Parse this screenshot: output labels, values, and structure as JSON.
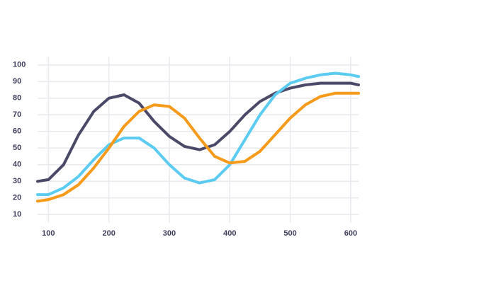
{
  "chart_data": {
    "type": "line",
    "x": [
      82,
      100,
      125,
      150,
      175,
      200,
      225,
      250,
      275,
      300,
      325,
      350,
      375,
      400,
      425,
      450,
      475,
      500,
      525,
      550,
      575,
      600,
      613
    ],
    "series": [
      {
        "color": "#4a4a68",
        "values": [
          30,
          31,
          40,
          58,
          72,
          80,
          82,
          77,
          66,
          57,
          51,
          49,
          52,
          60,
          70,
          78,
          83,
          86,
          88,
          89,
          89,
          89,
          88
        ]
      },
      {
        "color": "#5ccbf2",
        "values": [
          22,
          22,
          26,
          33,
          43,
          52,
          56,
          56,
          50,
          40,
          32,
          29,
          31,
          40,
          55,
          70,
          82,
          89,
          92,
          94,
          95,
          94,
          93
        ]
      },
      {
        "color": "#f59a1b",
        "values": [
          18,
          19,
          22,
          28,
          38,
          50,
          63,
          72,
          76,
          75,
          68,
          56,
          45,
          41,
          42,
          48,
          58,
          68,
          76,
          81,
          83,
          83,
          83
        ]
      }
    ],
    "xlim": [
      82,
      613
    ],
    "ylim": [
      5,
      105
    ],
    "xticks": [
      100,
      200,
      300,
      400,
      500,
      600
    ],
    "yticks": [
      10,
      20,
      30,
      40,
      50,
      60,
      70,
      80,
      90,
      100
    ],
    "grid": true
  }
}
